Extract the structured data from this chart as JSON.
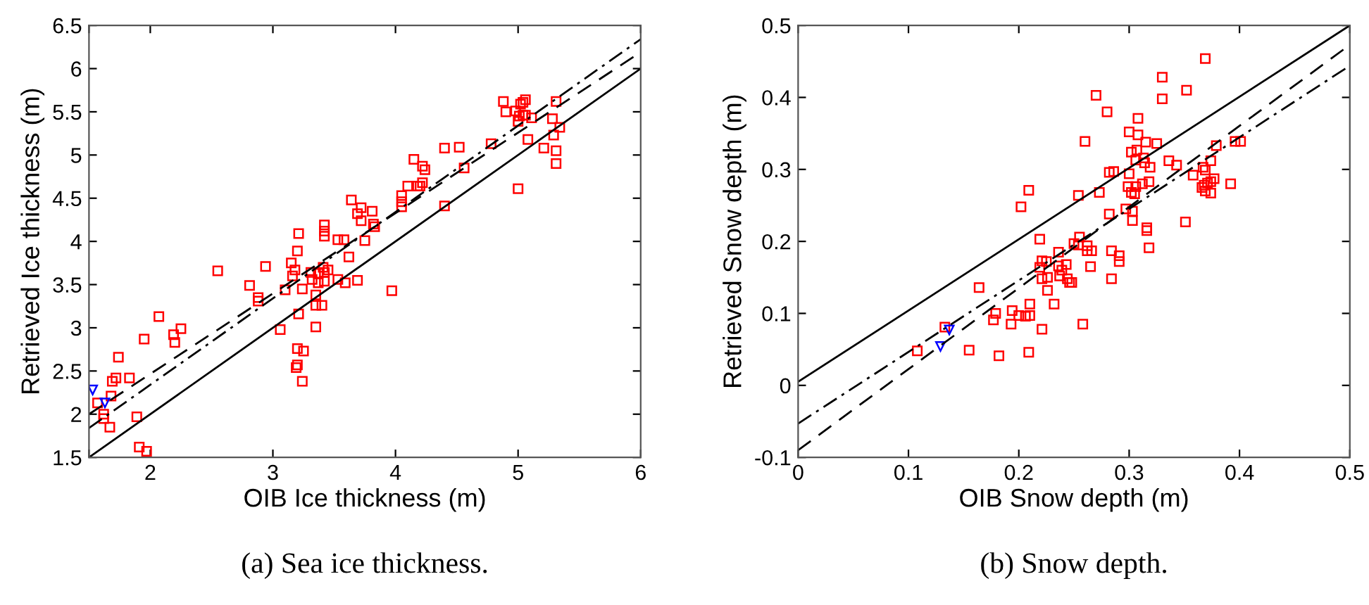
{
  "chart_data": [
    {
      "type": "scatter",
      "title": "(a) Sea ice thickness.",
      "xlabel": "OIB Ice thickness (m)",
      "ylabel": "Retrieved Ice thickness (m)",
      "xlim": [
        1.5,
        6
      ],
      "xticks": [
        {
          "value": 1.5,
          "label": null
        },
        2,
        3,
        4,
        5,
        6
      ],
      "ylim": [
        1.5,
        6.5
      ],
      "yticks": [
        1.5,
        2,
        2.5,
        3,
        3.5,
        4,
        4.5,
        5,
        5.5,
        6,
        6.5
      ],
      "grid": false,
      "legend": false,
      "series": [
        {
          "marker": "square",
          "color": "#ff0000",
          "x": [
            3.64,
            3.69,
            3.72,
            3.72,
            3.75,
            3.21,
            3.42,
            3.42,
            3.42,
            3.53,
            3.58,
            3.2,
            2.94,
            3.15,
            3.18,
            3.16,
            2.55,
            2.81,
            2.88,
            2.88,
            3.1,
            3.24,
            3.31,
            3.32,
            3.37,
            3.41,
            3.42,
            3.45,
            3.42,
            3.37,
            3.53,
            3.59,
            3.62,
            3.69,
            3.35,
            3.35,
            3.4,
            3.21,
            3.35,
            3.06,
            2.07,
            2.25,
            2.19,
            2.2,
            1.95,
            1.74,
            3.2,
            3.25,
            3.2,
            3.19,
            3.24,
            1.83,
            1.72,
            1.69,
            1.68,
            1.57,
            1.62,
            1.62,
            1.67,
            1.89,
            1.91,
            1.97,
            4.88,
            5.06,
            5.04,
            5.02,
            4.9,
            4.98,
            5.01,
            5.04,
            5.06,
            5.0,
            5.11,
            5.31,
            5.28,
            5.34,
            5.29,
            5.08,
            5.21,
            5.31,
            5.31,
            4.78,
            4.52,
            4.4,
            4.15,
            4.22,
            4.24,
            4.56,
            4.1,
            4.18,
            4.2,
            4.22,
            4.05,
            4.05,
            4.05,
            4.4,
            5.0,
            3.81,
            3.82,
            3.83,
            3.97
          ],
          "values": [
            4.48,
            4.32,
            4.39,
            4.24,
            4.01,
            4.09,
            4.19,
            4.12,
            4.06,
            4.02,
            4.02,
            3.89,
            3.71,
            3.75,
            3.67,
            3.6,
            3.66,
            3.49,
            3.35,
            3.31,
            3.44,
            3.45,
            3.64,
            3.56,
            3.63,
            3.7,
            3.64,
            3.67,
            3.54,
            3.52,
            3.56,
            3.52,
            3.82,
            3.55,
            3.38,
            3.26,
            3.26,
            3.16,
            3.01,
            2.98,
            3.13,
            2.99,
            2.92,
            2.83,
            2.87,
            2.66,
            2.76,
            2.73,
            2.57,
            2.54,
            2.38,
            2.42,
            2.42,
            2.38,
            2.21,
            2.13,
            2.0,
            1.95,
            1.85,
            1.97,
            1.62,
            1.57,
            5.62,
            5.64,
            5.61,
            5.59,
            5.5,
            5.51,
            5.45,
            5.46,
            5.46,
            5.39,
            5.43,
            5.62,
            5.42,
            5.32,
            5.23,
            5.18,
            5.08,
            5.05,
            4.9,
            5.13,
            5.09,
            5.08,
            4.95,
            4.87,
            4.83,
            4.85,
            4.64,
            4.64,
            4.64,
            4.68,
            4.53,
            4.46,
            4.4,
            4.41,
            4.61,
            4.35,
            4.2,
            4.17,
            3.43
          ]
        },
        {
          "marker": "triangle",
          "color": "#0000ff",
          "x": [
            1.53,
            1.63
          ],
          "values": [
            2.28,
            2.13
          ]
        },
        {
          "type": "line",
          "line_style": "solid",
          "color": "#000000",
          "x": [
            1.5,
            6
          ],
          "values": [
            1.5,
            6
          ]
        },
        {
          "type": "line",
          "line_style": "dashed",
          "color": "#000000",
          "x": [
            1.5,
            6
          ],
          "values": [
            2.0,
            6.19
          ]
        },
        {
          "type": "line",
          "line_style": "dashdot",
          "color": "#000000",
          "x": [
            1.5,
            6
          ],
          "values": [
            1.84,
            6.34
          ]
        }
      ]
    },
    {
      "type": "scatter",
      "title": "(b) Snow depth.",
      "xlabel": "OIB Snow depth (m)",
      "ylabel": "Retrieved Snow depth (m)",
      "xlim": [
        0,
        0.5
      ],
      "xticks": [
        0,
        0.1,
        0.2,
        0.3,
        0.4,
        0.5
      ],
      "ylim": [
        -0.1,
        0.5
      ],
      "yticks": [
        -0.1,
        0,
        0.1,
        0.2,
        0.3,
        0.4,
        0.5
      ],
      "grid": false,
      "legend": false,
      "series": [
        {
          "marker": "square",
          "color": "#ff0000",
          "x": [
            0.209,
            0.202,
            0.219,
            0.236,
            0.221,
            0.225,
            0.219,
            0.236,
            0.243,
            0.237,
            0.226,
            0.221,
            0.246,
            0.164,
            0.226,
            0.21,
            0.232,
            0.179,
            0.177,
            0.194,
            0.2,
            0.206,
            0.21,
            0.193,
            0.221,
            0.133,
            0.108,
            0.155,
            0.182,
            0.209,
            0.369,
            0.33,
            0.352,
            0.27,
            0.33,
            0.28,
            0.308,
            0.3,
            0.308,
            0.26,
            0.315,
            0.325,
            0.302,
            0.307,
            0.379,
            0.396,
            0.401,
            0.306,
            0.313,
            0.314,
            0.319,
            0.336,
            0.343,
            0.374,
            0.282,
            0.286,
            0.3,
            0.367,
            0.369,
            0.358,
            0.392,
            0.318,
            0.312,
            0.306,
            0.299,
            0.366,
            0.371,
            0.374,
            0.377,
            0.369,
            0.374,
            0.368,
            0.302,
            0.305,
            0.254,
            0.273,
            0.282,
            0.297,
            0.303,
            0.303,
            0.316,
            0.316,
            0.351,
            0.255,
            0.25,
            0.254,
            0.262,
            0.262,
            0.266,
            0.318,
            0.284,
            0.291,
            0.291,
            0.265,
            0.239,
            0.244,
            0.248,
            0.284,
            0.258
          ],
          "values": [
            0.271,
            0.248,
            0.203,
            0.185,
            0.173,
            0.172,
            0.164,
            0.166,
            0.168,
            0.152,
            0.15,
            0.148,
            0.143,
            0.136,
            0.132,
            0.113,
            0.113,
            0.1,
            0.091,
            0.104,
            0.097,
            0.096,
            0.097,
            0.085,
            0.078,
            0.081,
            0.048,
            0.049,
            0.041,
            0.046,
            0.454,
            0.428,
            0.41,
            0.403,
            0.398,
            0.38,
            0.371,
            0.352,
            0.348,
            0.339,
            0.338,
            0.336,
            0.324,
            0.327,
            0.333,
            0.339,
            0.339,
            0.313,
            0.316,
            0.309,
            0.303,
            0.312,
            0.306,
            0.312,
            0.296,
            0.297,
            0.294,
            0.303,
            0.299,
            0.292,
            0.28,
            0.283,
            0.28,
            0.276,
            0.276,
            0.275,
            0.281,
            0.283,
            0.287,
            0.27,
            0.267,
            0.278,
            0.268,
            0.266,
            0.264,
            0.268,
            0.238,
            0.245,
            0.242,
            0.229,
            0.219,
            0.215,
            0.227,
            0.206,
            0.197,
            0.195,
            0.194,
            0.187,
            0.187,
            0.191,
            0.187,
            0.18,
            0.172,
            0.165,
            0.16,
            0.148,
            0.143,
            0.148,
            0.085
          ]
        },
        {
          "marker": "triangle",
          "color": "#0000ff",
          "x": [
            0.137,
            0.129
          ],
          "values": [
            0.077,
            0.054
          ]
        },
        {
          "type": "line",
          "line_style": "solid",
          "color": "#000000",
          "x": [
            0,
            0.5
          ],
          "values": [
            0.005,
            0.5
          ]
        },
        {
          "type": "line",
          "line_style": "dashed",
          "color": "#000000",
          "x": [
            0,
            0.5
          ],
          "values": [
            -0.09,
            0.473
          ]
        },
        {
          "type": "line",
          "line_style": "dashdot",
          "color": "#000000",
          "x": [
            0,
            0.5
          ],
          "values": [
            -0.053,
            0.444
          ]
        }
      ]
    }
  ]
}
